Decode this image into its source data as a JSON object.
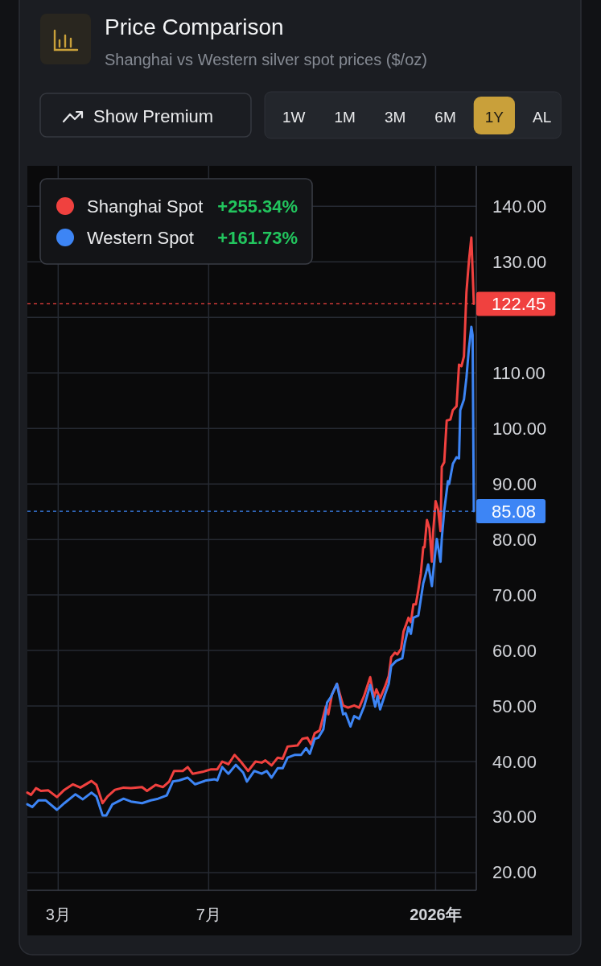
{
  "chart_data": {
    "type": "line",
    "title": "Price Comparison",
    "subtitle": "Shanghai vs Western silver spot prices ($/oz)",
    "xlim": [
      "2025-02-04",
      "2026-02-03"
    ],
    "xticks": [
      {
        "value": "2025-03-01",
        "label": "3月"
      },
      {
        "value": "2025-07-01",
        "label": "7月"
      },
      {
        "value": "2026-01-01",
        "label": "2026年"
      }
    ],
    "ylim": [
      16.8,
      147.3
    ],
    "yticks": [
      {
        "value": 20,
        "label": "20.00"
      },
      {
        "value": 30,
        "label": "30.00"
      },
      {
        "value": 40,
        "label": "40.00"
      },
      {
        "value": 50,
        "label": "50.00"
      },
      {
        "value": 60,
        "label": "60.00"
      },
      {
        "value": 70,
        "label": "70.00"
      },
      {
        "value": 80,
        "label": "80.00"
      },
      {
        "value": 90,
        "label": "90.00"
      },
      {
        "value": 100,
        "label": "100.00"
      },
      {
        "value": 110,
        "label": "110.00"
      },
      {
        "value": 120,
        "label": null
      },
      {
        "value": 130,
        "label": "130.00"
      },
      {
        "value": 140,
        "label": "140.00"
      }
    ],
    "grid": true,
    "legend": "top left",
    "series": [
      {
        "name": "Shanghai Spot",
        "color": "#f0413f",
        "x": [
          "2025-02-04",
          "2025-02-07",
          "2025-02-11",
          "2025-02-15",
          "2025-02-21",
          "2025-02-28",
          "2025-03-06",
          "2025-03-13",
          "2025-03-19",
          "2025-03-28",
          "2025-04-01",
          "2025-04-06",
          "2025-04-10",
          "2025-04-16",
          "2025-04-23",
          "2025-04-29",
          "2025-05-08",
          "2025-05-12",
          "2025-05-19",
          "2025-05-25",
          "2025-05-30",
          "2025-06-03",
          "2025-06-10",
          "2025-06-14",
          "2025-06-18",
          "2025-06-27",
          "2025-07-03",
          "2025-07-08",
          "2025-07-12",
          "2025-07-17",
          "2025-07-22",
          "2025-07-27",
          "2025-08-02",
          "2025-08-08",
          "2025-08-13",
          "2025-08-16",
          "2025-08-21",
          "2025-08-26",
          "2025-08-30",
          "2025-09-03",
          "2025-09-11",
          "2025-09-15",
          "2025-09-19",
          "2025-09-22",
          "2025-09-25",
          "2025-09-29",
          "2025-10-04",
          "2025-10-06",
          "2025-10-09",
          "2025-10-13",
          "2025-10-18",
          "2025-10-22",
          "2025-10-27",
          "2025-10-31",
          "2025-11-04",
          "2025-11-09",
          "2025-11-12",
          "2025-11-14",
          "2025-11-17",
          "2025-11-21",
          "2025-11-24",
          "2025-11-26",
          "2025-11-29",
          "2025-12-01",
          "2025-12-04",
          "2025-12-06",
          "2025-12-08",
          "2025-12-10",
          "2025-12-12",
          "2025-12-14",
          "2025-12-16",
          "2025-12-18",
          "2025-12-20",
          "2025-12-22",
          "2025-12-23",
          "2025-12-25",
          "2025-12-27",
          "2025-12-29",
          "2025-12-30",
          "2026-01-01",
          "2026-01-03",
          "2026-01-05",
          "2026-01-06",
          "2026-01-08",
          "2026-01-10",
          "2026-01-13",
          "2026-01-15",
          "2026-01-18",
          "2026-01-20",
          "2026-01-22",
          "2026-01-24",
          "2026-01-26",
          "2026-01-28",
          "2026-01-30",
          "2026-02-01"
        ],
        "values": [
          34.4,
          34.0,
          35.2,
          34.7,
          34.8,
          33.6,
          34.9,
          35.9,
          35.3,
          36.5,
          35.8,
          32.5,
          33.7,
          34.9,
          35.3,
          35.2,
          35.4,
          34.7,
          35.8,
          35.4,
          36.4,
          38.3,
          38.3,
          39.0,
          37.8,
          38.2,
          38.6,
          38.6,
          40.0,
          39.5,
          41.2,
          40.0,
          38.3,
          40.0,
          39.8,
          40.2,
          39.3,
          40.7,
          40.5,
          42.7,
          42.9,
          44.1,
          44.3,
          43.1,
          45.1,
          45.6,
          49.9,
          48.5,
          52.1,
          54.0,
          50.1,
          49.7,
          50.1,
          49.7,
          51.8,
          55.2,
          51.6,
          53.0,
          51.4,
          53.5,
          55.4,
          58.8,
          59.6,
          59.3,
          60.3,
          63.4,
          64.6,
          65.9,
          65.1,
          68.3,
          68.3,
          70.9,
          73.8,
          78.6,
          78.6,
          83.5,
          82.0,
          76.0,
          81.3,
          86.9,
          85.4,
          81.5,
          93.1,
          93.9,
          101.4,
          101.6,
          103.3,
          104.0,
          111.5,
          111.2,
          113.0,
          124.5,
          130.1,
          134.4,
          122.45
        ]
      },
      {
        "name": "Western Spot",
        "color": "#3d85f5",
        "x": [
          "2025-02-04",
          "2025-02-08",
          "2025-02-13",
          "2025-02-19",
          "2025-02-28",
          "2025-03-06",
          "2025-03-15",
          "2025-03-21",
          "2025-03-28",
          "2025-04-01",
          "2025-04-06",
          "2025-04-09",
          "2025-04-14",
          "2025-04-23",
          "2025-04-29",
          "2025-05-08",
          "2025-05-15",
          "2025-05-21",
          "2025-05-28",
          "2025-06-02",
          "2025-06-07",
          "2025-06-14",
          "2025-06-20",
          "2025-06-29",
          "2025-07-06",
          "2025-07-08",
          "2025-07-12",
          "2025-07-17",
          "2025-07-23",
          "2025-07-29",
          "2025-08-01",
          "2025-08-07",
          "2025-08-13",
          "2025-08-17",
          "2025-08-21",
          "2025-08-26",
          "2025-08-30",
          "2025-09-03",
          "2025-09-09",
          "2025-09-14",
          "2025-09-18",
          "2025-09-21",
          "2025-09-25",
          "2025-09-28",
          "2025-10-02",
          "2025-10-05",
          "2025-10-08",
          "2025-10-13",
          "2025-10-18",
          "2025-10-20",
          "2025-10-24",
          "2025-10-27",
          "2025-10-31",
          "2025-11-04",
          "2025-11-09",
          "2025-11-13",
          "2025-11-15",
          "2025-11-17",
          "2025-11-21",
          "2025-11-24",
          "2025-11-26",
          "2025-11-30",
          "2025-12-05",
          "2025-12-07",
          "2025-12-10",
          "2025-12-12",
          "2025-12-14",
          "2025-12-18",
          "2025-12-20",
          "2025-12-22",
          "2025-12-23",
          "2025-12-26",
          "2025-12-29",
          "2025-12-31",
          "2026-01-02",
          "2026-01-05",
          "2026-01-06",
          "2026-01-08",
          "2026-01-11",
          "2026-01-12",
          "2026-01-15",
          "2026-01-18",
          "2026-01-20",
          "2026-01-21",
          "2026-01-24",
          "2026-01-26",
          "2026-01-28",
          "2026-01-30",
          "2026-01-31",
          "2026-02-01"
        ],
        "values": [
          32.3,
          31.8,
          33.0,
          33.0,
          31.3,
          32.5,
          34.1,
          33.2,
          34.4,
          33.7,
          30.3,
          30.3,
          32.3,
          33.3,
          32.8,
          32.5,
          33.0,
          33.3,
          33.9,
          36.4,
          36.6,
          37.1,
          35.9,
          36.6,
          36.8,
          36.6,
          39.0,
          37.8,
          39.4,
          38.0,
          36.4,
          38.3,
          37.8,
          38.3,
          37.1,
          38.8,
          38.8,
          40.7,
          41.2,
          41.2,
          42.4,
          41.4,
          44.1,
          44.3,
          45.8,
          50.6,
          51.6,
          54.0,
          48.5,
          48.7,
          46.3,
          48.2,
          47.7,
          49.9,
          53.8,
          49.9,
          51.8,
          49.4,
          52.1,
          54.0,
          57.2,
          58.1,
          58.6,
          61.3,
          64.2,
          63.0,
          65.9,
          66.3,
          69.2,
          72.1,
          72.9,
          75.5,
          71.6,
          76.2,
          80.1,
          76.0,
          80.1,
          85.2,
          90.5,
          90.0,
          93.6,
          94.8,
          94.6,
          103.3,
          105.2,
          109.1,
          114.4,
          118.3,
          116.8,
          85.08
        ]
      }
    ],
    "ref_lines": [
      {
        "axis": "y",
        "value": 122.45,
        "label": "122.45",
        "color": "#f0413f",
        "line_style": "dashed"
      },
      {
        "axis": "y",
        "value": 85.08,
        "label": "85.08",
        "color": "#3d85f5",
        "line_style": "dashed"
      }
    ],
    "annotations": [
      "+255.34%",
      "+161.73%",
      "Show Premium",
      "1W",
      "1M",
      "3M",
      "6M",
      "1Y",
      "AL"
    ]
  }
}
